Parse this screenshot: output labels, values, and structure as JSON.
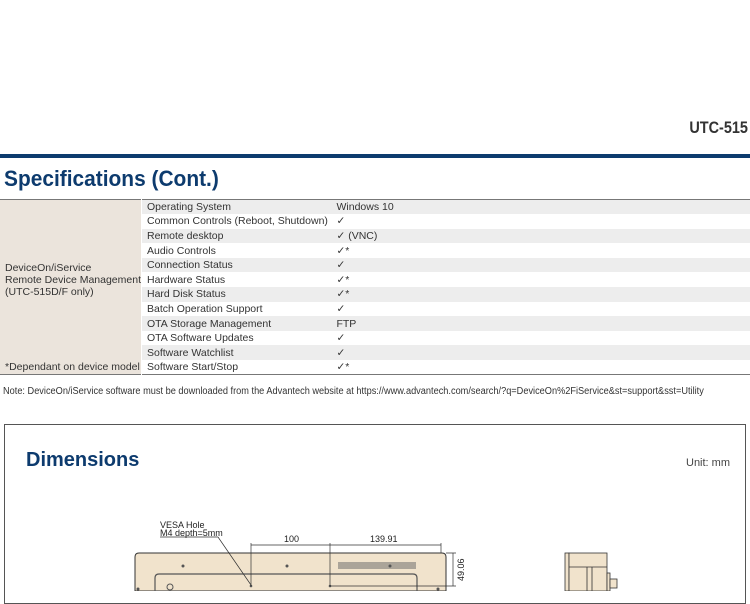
{
  "header": {
    "model": "UTC-515"
  },
  "spec": {
    "title": "Specifications (Cont.)",
    "group_label": [
      "DeviceOn/iService",
      "Remote Device Management",
      "(UTC-515D/F only)"
    ],
    "footnote": "*Dependant on device model",
    "rows": [
      {
        "feature": "Operating System",
        "value": "Windows 10"
      },
      {
        "feature": "Common Controls (Reboot, Shutdown)",
        "value": "✓"
      },
      {
        "feature": "Remote desktop",
        "value": "✓ (VNC)"
      },
      {
        "feature": "Audio Controls",
        "value": "✓*"
      },
      {
        "feature": "Connection Status",
        "value": "✓"
      },
      {
        "feature": "Hardware Status",
        "value": "✓*"
      },
      {
        "feature": "Hard Disk Status",
        "value": "✓*"
      },
      {
        "feature": "Batch Operation Support",
        "value": "✓"
      },
      {
        "feature": "OTA Storage Management",
        "value": "FTP"
      },
      {
        "feature": "OTA Software Updates",
        "value": "✓"
      },
      {
        "feature": "Software Watchlist",
        "value": "✓"
      },
      {
        "feature": "Software Start/Stop",
        "value": "✓*"
      }
    ]
  },
  "note": "Note: DeviceOn/iService software must be downloaded from the Advantech website at https://www.advantech.com/search/?q=DeviceOn%2FiService&st=support&sst=Utility",
  "dimensions": {
    "title": "Dimensions",
    "unit": "Unit: mm",
    "vesa_line1": "VESA Hole",
    "vesa_line2": "M4  depth=5mm",
    "dim_a": "100",
    "dim_b": "139.91",
    "dim_c": "49.06"
  }
}
